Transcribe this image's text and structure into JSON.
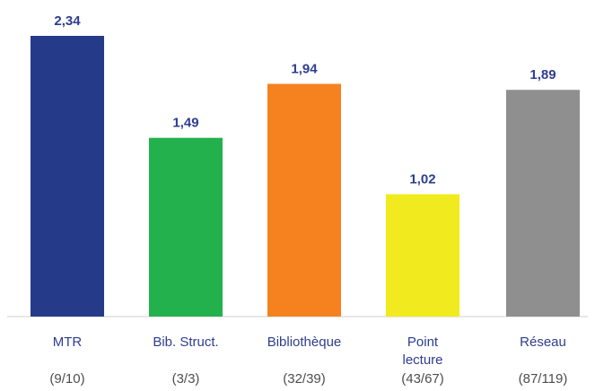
{
  "chart_data": {
    "type": "bar",
    "categories": [
      [
        "MTR"
      ],
      [
        "Bib. Struct."
      ],
      [
        "Bibliothèque"
      ],
      [
        "Point",
        "lecture"
      ],
      [
        "Réseau"
      ]
    ],
    "values": [
      2.34,
      1.49,
      1.94,
      1.02,
      1.89
    ],
    "value_labels": [
      "2,34",
      "1,49",
      "1,94",
      "1,02",
      "1,89"
    ],
    "counts": [
      "(9/10)",
      "(3/3)",
      "(32/39)",
      "(43/67)",
      "(87/119)"
    ],
    "colors": [
      "#263a8a",
      "#22b14c",
      "#f5821f",
      "#f1ea1e",
      "#8f8f8f"
    ],
    "ylim": [
      0,
      2.34
    ],
    "grid": false,
    "label_color": "#2e3d8f",
    "count_color": "#4d4d4d"
  }
}
